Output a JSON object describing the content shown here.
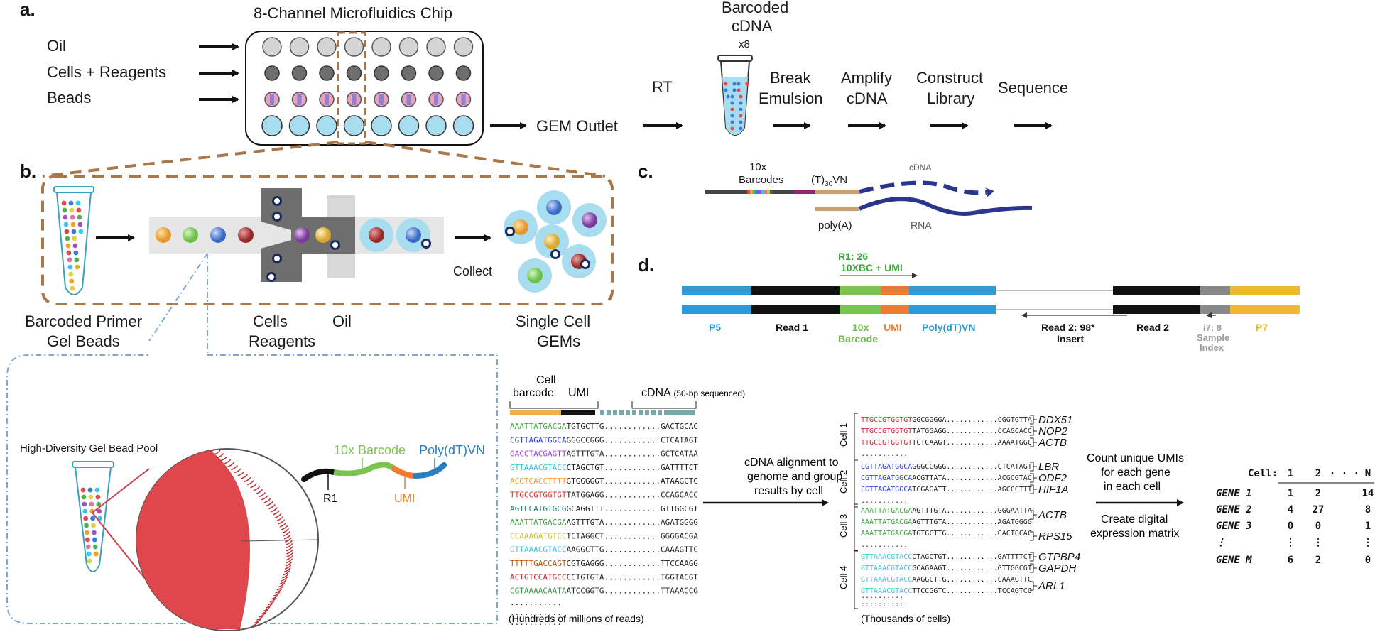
{
  "panels": [
    "a.",
    "b.",
    "c.",
    "d."
  ],
  "a": {
    "chip_title": "8-Channel Microfluidics Chip",
    "inputs": [
      "Oil",
      "Cells + Reagents",
      "Beads"
    ],
    "gem_outlet": "GEM Outlet",
    "rt": "RT",
    "cdna_line1": "Barcoded",
    "cdna_line2": "cDNA",
    "x8": "x8",
    "steps": [
      {
        "line1": "Break",
        "line2": "Emulsion"
      },
      {
        "line1": "Amplify",
        "line2": "cDNA"
      },
      {
        "line1": "Construct",
        "line2": "Library"
      },
      {
        "line1": "Sequence",
        "line2": ""
      }
    ]
  },
  "b": {
    "primer_line1": "Barcoded Primer",
    "primer_line2": "Gel Beads",
    "cells_reagents_line1": "Cells",
    "cells_reagents_line2": "Reagents",
    "oil": "Oil",
    "collect": "Collect",
    "single_line1": "Single Cell",
    "single_line2": "GEMs"
  },
  "c": {
    "barcodes_line1": "10x",
    "barcodes_line2": "Barcodes",
    "polyt": "(T)",
    "polyt_sub": "30",
    "polyt_suffix": "VN",
    "cdna": "cDNA",
    "polya": "poly(A)",
    "rna": "RNA"
  },
  "d": {
    "r1_line1": "R1: 26",
    "r1_line2": "10XBC + UMI",
    "labels": {
      "p5": "P5",
      "read1": "Read 1",
      "barcode_line1": "10x",
      "barcode_line2": "Barcode",
      "umi": "UMI",
      "polydt": "Poly(dT)VN",
      "read2insert_line1": "Read 2: 98*",
      "read2insert_line2": "Insert",
      "read2": "Read 2",
      "i7_line1": "i7: 8",
      "i7_line2": "Sample",
      "i7_line3": "Index",
      "p7": "P7"
    }
  },
  "zoom": {
    "pool_label": "High-Diversity Gel Bead Pool",
    "oligo_barcode": "10x Barcode",
    "oligo_polydt": "Poly(dT)VN",
    "oligo_r1": "R1",
    "oligo_umi": "UMI"
  },
  "reads": {
    "cell_barcode_line1": "Cell",
    "cell_barcode_line2": "barcode",
    "umi": "UMI",
    "cdna": "cDNA",
    "cdna_note": "(50-bp sequenced)",
    "rows": [
      {
        "bc": "AAATTATGACGA",
        "color": "#3aa63a",
        "umi": "TGTGCTTG",
        "dots": "............",
        "end": "GACTGCAC"
      },
      {
        "bc": "CGTTAGATGGCA",
        "color": "#2a3fe0",
        "umi": "GGGCCGGG",
        "dots": "............",
        "end": "CTCATAGT"
      },
      {
        "bc": "GACCTACGAGTT",
        "color": "#a63ad6",
        "umi": "AGTTTGTA",
        "dots": "............",
        "end": "GCTCATAA"
      },
      {
        "bc": "GTTAAACGTACC",
        "color": "#38c5e8",
        "umi": "CTAGCTGT",
        "dots": "............",
        "end": "GATTTTCT"
      },
      {
        "bc": "ACGTCACCTTTT",
        "color": "#f0a040",
        "umi": "GTGGGGGT",
        "dots": "............",
        "end": "ATAAGCTC"
      },
      {
        "bc": "TTGCCGTGGTGT",
        "color": "#e0262a",
        "umi": "TATGGAGG",
        "dots": "............",
        "end": "CCAGCACC"
      },
      {
        "bc": "AGTCCATGTGCG",
        "color": "#2a7f6a",
        "umi": "GCAGGTTT",
        "dots": "............",
        "end": "GTTGGCGT"
      },
      {
        "bc": "AAATTATGACGA",
        "color": "#3aa63a",
        "umi": "AGTTTGTA",
        "dots": "............",
        "end": "AGATGGGG"
      },
      {
        "bc": "CCAAAGATGTCC",
        "color": "#c8c42a",
        "umi": "TCTAGGCT",
        "dots": "............",
        "end": "GGGGACGA"
      },
      {
        "bc": "GTTAAACGTACC",
        "color": "#38c5e8",
        "umi": "AAGGCTTG",
        "dots": "............",
        "end": "CAAAGTTC"
      },
      {
        "bc": "TTTTTGACCAGT",
        "color": "#b05a1a",
        "umi": "CGTGAGGG",
        "dots": "............",
        "end": "TTCCAAGG"
      },
      {
        "bc": "ACTGTCCATGCC",
        "color": "#c0303a",
        "umi": "CCTGTGTA",
        "dots": "............",
        "end": "TGGTACGT"
      },
      {
        "bc": "CGTAAAACAATA",
        "color": "#2e9a40",
        "umi": "ATCCGGTG",
        "dots": "............",
        "end": "TTAAACCG"
      }
    ],
    "trailing_dots": [
      "...........",
      "...........",
      "..........."
    ],
    "footer": "(Hundreds of millions of reads)"
  },
  "align": {
    "line1": "cDNA alignment to",
    "line2": "genome and group",
    "line3": "results by cell"
  },
  "cells": {
    "groups": [
      {
        "label": "Cell 1",
        "color": "#e0262a",
        "rows": [
          {
            "bc": "TTGCCGTGGTGT",
            "mid": "GGCGGGGA",
            "dots": "............",
            "end": "CGGTGTTA"
          },
          {
            "bc": "TTGCCGTGGTGT",
            "mid": "TATGGAGG",
            "dots": "............",
            "end": "CCAGCACC"
          },
          {
            "bc": "TTGCCGTGGTGT",
            "mid": "TCTCAAGT",
            "dots": "............",
            "end": "AAAATGGC"
          }
        ],
        "genes": [
          "DDX51",
          "NOP2",
          "ACTB"
        ]
      },
      {
        "label": "Cell 2",
        "color": "#2a3fe0",
        "rows": [
          {
            "bc": "CGTTAGATGGCA",
            "mid": "GGGCCGGG",
            "dots": "............",
            "end": "CTCATAGT"
          },
          {
            "bc": "CGTTAGATGGCA",
            "mid": "ACGTTATA",
            "dots": "............",
            "end": "ACGCGTAC"
          },
          {
            "bc": "CGTTAGATGGCA",
            "mid": "TCGAGATT",
            "dots": "............",
            "end": "AGCCCTTT"
          }
        ],
        "genes": [
          "LBR",
          "ODF2",
          "HIF1A"
        ]
      },
      {
        "label": "Cell 3",
        "color": "#3aa63a",
        "rows": [
          {
            "bc": "AAATTATGACGA",
            "mid": "AGTTTGTA",
            "dots": "............",
            "end": "GGGAATTA"
          },
          {
            "bc": "AAATTATGACGA",
            "mid": "AGTTTGTA",
            "dots": "............",
            "end": "AGATGGGG"
          },
          {
            "bc": "AAATTATGACGA",
            "mid": "TGTGCTTG",
            "dots": "............",
            "end": "GACTGCAC"
          }
        ],
        "genes": [
          "ACTB",
          "RPS15"
        ]
      },
      {
        "label": "Cell 4",
        "color": "#38c5e8",
        "rows": [
          {
            "bc": "GTTAAACGTACC",
            "mid": "CTAGCTGT",
            "dots": "............",
            "end": "GATTTTCT"
          },
          {
            "bc": "GTTAAACGTACC",
            "mid": "GCAGAAGT",
            "dots": "............",
            "end": "GTTGGCGT"
          },
          {
            "bc": "GTTAAACGTACC",
            "mid": "AAGGCTTG",
            "dots": "............",
            "end": "CAAAGTTC"
          },
          {
            "bc": "GTTAAACGTACC",
            "mid": "TTCCGGTC",
            "dots": "............",
            "end": "TCCAGTCG"
          }
        ],
        "genes": [
          "GTPBP4",
          "GAPDH",
          "ARL1"
        ]
      }
    ],
    "group_dots": "...........",
    "trailing_dots": [
      "..........",
      ".........."
    ],
    "footer": "(Thousands of cells)"
  },
  "count": {
    "line1": "Count unique UMIs",
    "line2": "for each gene",
    "line3": "in each cell",
    "line4": "Create digital",
    "line5": "expression matrix"
  },
  "matrix": {
    "header_label": "Cell:",
    "columns": [
      "1",
      "2",
      "· · ·",
      "N"
    ],
    "rows": [
      {
        "gene": "GENE 1",
        "values": [
          "1",
          "2",
          "",
          "14"
        ]
      },
      {
        "gene": "GENE 2",
        "values": [
          "4",
          "27",
          "",
          "8"
        ]
      },
      {
        "gene": "GENE 3",
        "values": [
          "0",
          "0",
          "",
          "1"
        ]
      },
      {
        "gene": "⋮",
        "values": [
          "⋮",
          "⋮",
          "",
          "⋮"
        ]
      },
      {
        "gene": "GENE M",
        "values": [
          "6",
          "2",
          "",
          "0"
        ]
      }
    ]
  },
  "colors": {
    "brown": "#a8784a",
    "navy": "#2a3590",
    "lightblue": "#a8ddf0",
    "p5": "#2a9ad8",
    "red": "#e0474c",
    "green": "#7cc450",
    "orange": "#f07a30",
    "yellow": "#f0b830"
  }
}
